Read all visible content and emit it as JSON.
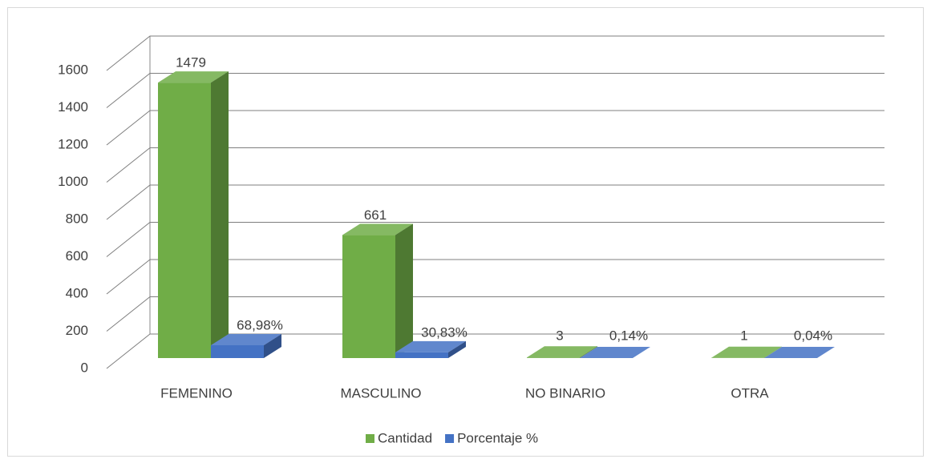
{
  "chart_data": {
    "type": "bar3d",
    "categories": [
      "FEMENINO",
      "MASCULINO",
      "NO BINARIO",
      "OTRA"
    ],
    "series": [
      {
        "name": "Cantidad",
        "color": "#70ad47",
        "values": [
          1479,
          661,
          3,
          1
        ]
      },
      {
        "name": "Porcentaje %",
        "color": "#4472c4",
        "values": [
          68.98,
          30.83,
          0.14,
          0.04
        ],
        "value_labels": [
          "68,98%",
          "30,83%",
          "0,14%",
          "0,04%"
        ]
      }
    ],
    "ylim": [
      0,
      1600
    ],
    "yticks": [
      0,
      200,
      400,
      600,
      800,
      1000,
      1200,
      1400,
      1600
    ],
    "grid": true,
    "legend": "bottom"
  }
}
